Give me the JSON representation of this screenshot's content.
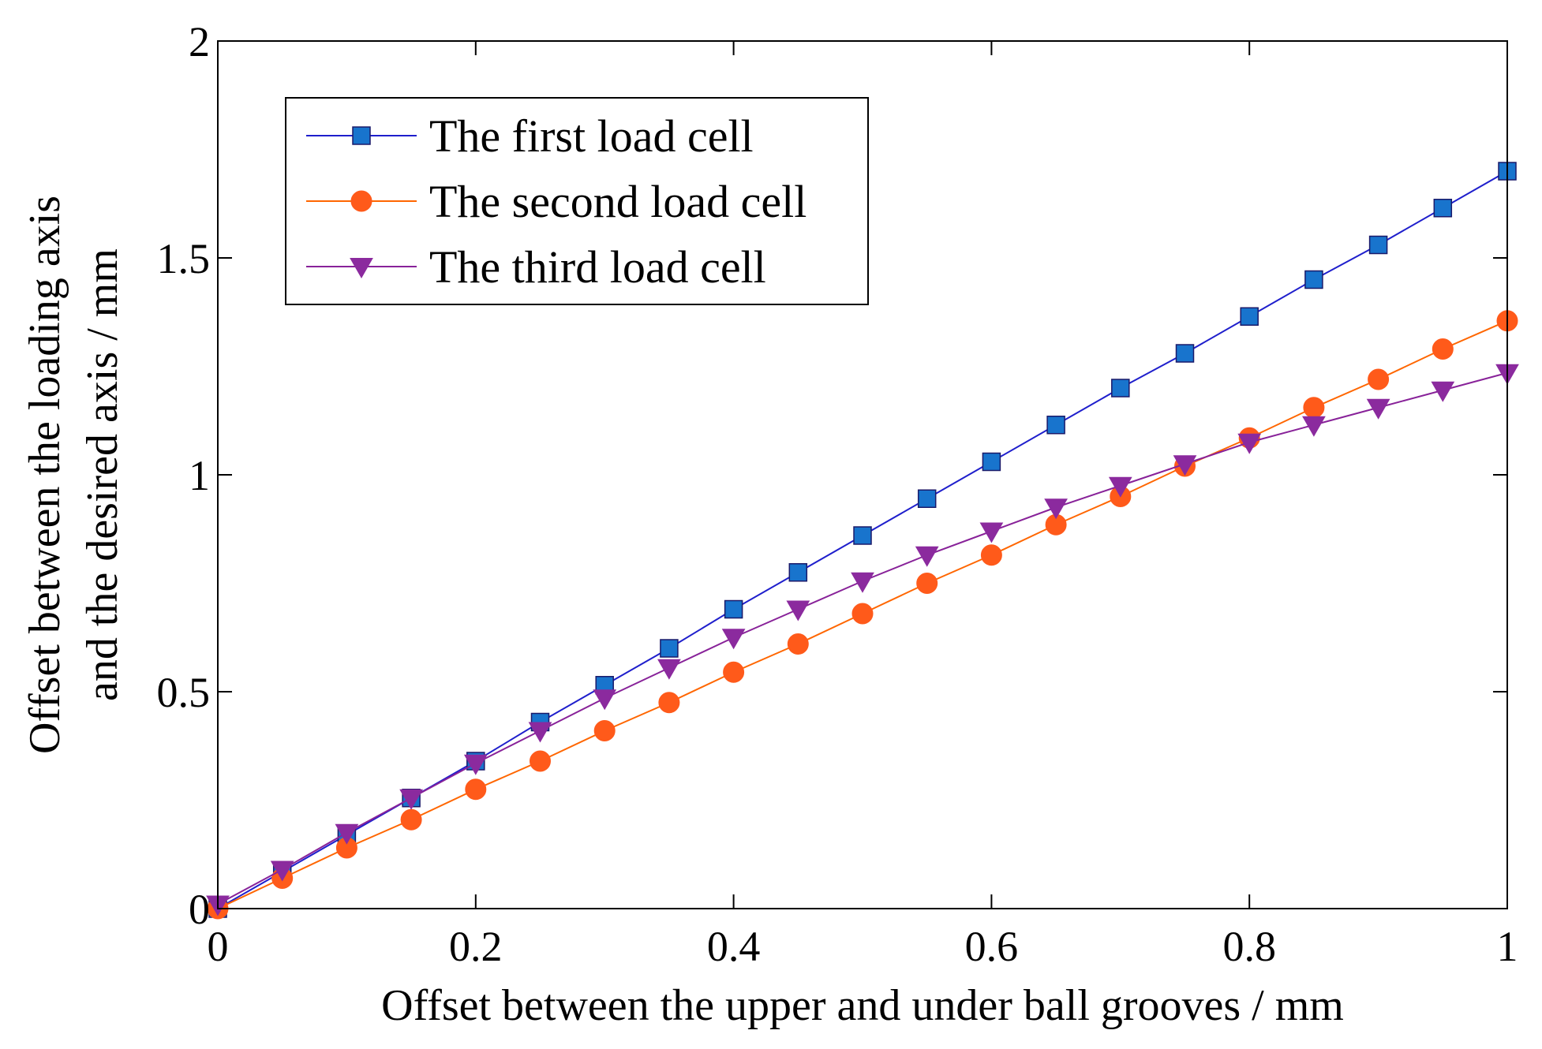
{
  "chart_data": {
    "type": "line",
    "title": "",
    "xlabel": "Offset between the upper and under ball grooves / mm",
    "ylabel_lines": [
      "Offset between the loading axis",
      "and the desired axis / mm"
    ],
    "xlim": [
      0,
      1
    ],
    "ylim": [
      0,
      2
    ],
    "x_ticks": [
      0,
      0.2,
      0.4,
      0.6,
      0.8,
      1
    ],
    "x_tick_labels": [
      "0",
      "0.2",
      "0.4",
      "0.6",
      "0.8",
      "1"
    ],
    "y_ticks": [
      0,
      0.5,
      1,
      1.5,
      2
    ],
    "y_tick_labels": [
      "0",
      "0.5",
      "1",
      "1.5",
      "2"
    ],
    "grid": false,
    "legend_position": "top-left",
    "x": [
      0,
      0.05,
      0.1,
      0.15,
      0.2,
      0.25,
      0.3,
      0.35,
      0.4,
      0.45,
      0.5,
      0.55,
      0.6,
      0.65,
      0.7,
      0.75,
      0.8,
      0.85,
      0.9,
      0.95,
      1
    ],
    "series": [
      {
        "name": "The first load cell",
        "marker": "square",
        "line_color": "#1f1fcc",
        "marker_color": "#1874cd",
        "values": [
          0,
          0.085,
          0.17,
          0.255,
          0.34,
          0.43,
          0.515,
          0.6,
          0.69,
          0.775,
          0.86,
          0.945,
          1.03,
          1.115,
          1.2,
          1.28,
          1.365,
          1.45,
          1.53,
          1.615,
          1.7
        ]
      },
      {
        "name": "The second load cell",
        "marker": "circle",
        "line_color": "#ff6600",
        "marker_color": "#ff5a1a",
        "values": [
          0,
          0.07,
          0.14,
          0.205,
          0.275,
          0.34,
          0.41,
          0.475,
          0.545,
          0.61,
          0.68,
          0.75,
          0.815,
          0.885,
          0.95,
          1.02,
          1.085,
          1.155,
          1.22,
          1.29,
          1.355
        ]
      },
      {
        "name": "The third load cell",
        "marker": "triangle-down",
        "line_color": "#882299",
        "marker_color": "#8b2a9e",
        "values": [
          0.01,
          0.09,
          0.175,
          0.255,
          0.335,
          0.41,
          0.485,
          0.555,
          0.625,
          0.69,
          0.755,
          0.815,
          0.87,
          0.925,
          0.975,
          1.025,
          1.075,
          1.115,
          1.155,
          1.195,
          1.235
        ]
      }
    ]
  }
}
